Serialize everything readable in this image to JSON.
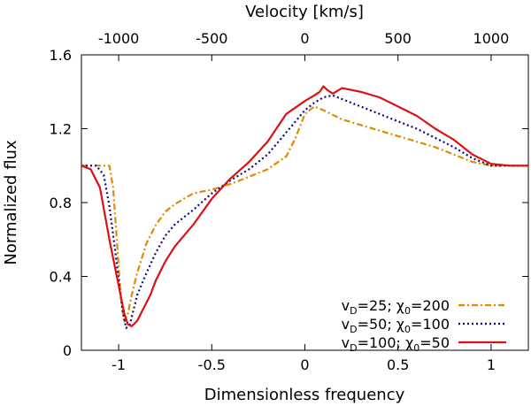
{
  "chart_data": {
    "type": "line",
    "title": "",
    "xlabel": "Dimensionless frequency",
    "ylabel": "Normalized flux",
    "x2label": "Velocity [km/s]",
    "xlim": [
      -1.2,
      1.2
    ],
    "ylim": [
      0,
      1.6
    ],
    "x2lim": [
      -1200,
      1200
    ],
    "xticks": [
      -1,
      -0.5,
      0,
      0.5,
      1
    ],
    "xtick_labels": [
      "-1",
      "-0.5",
      "0",
      "0.5",
      "1"
    ],
    "yticks": [
      0,
      0.4,
      0.8,
      1.2,
      1.6
    ],
    "ytick_labels": [
      "0",
      "0.4",
      "0.8",
      "1.2",
      "1.6"
    ],
    "x2ticks": [
      -1000,
      -500,
      0,
      500,
      1000
    ],
    "x2tick_labels": [
      "-1000",
      "-500",
      "0",
      "500",
      "1000"
    ],
    "grid": false,
    "legend_position": "bottom-right",
    "series": [
      {
        "name": "vD=25; χ0=200",
        "label_main": "v",
        "label_sub": "D",
        "label_rest": "=25; χ",
        "label_sub2": "0",
        "label_end": "=200",
        "color": "#e08a00",
        "dash": "7 3 2 3",
        "x": [
          -1.2,
          -1.1,
          -1.05,
          -1.03,
          -1.01,
          -0.99,
          -0.97,
          -0.95,
          -0.93,
          -0.9,
          -0.85,
          -0.8,
          -0.75,
          -0.7,
          -0.65,
          -0.6,
          -0.55,
          -0.5,
          -0.4,
          -0.3,
          -0.2,
          -0.1,
          -0.05,
          0.0,
          0.05,
          0.1,
          0.2,
          0.3,
          0.4,
          0.5,
          0.6,
          0.7,
          0.8,
          0.9,
          1.0,
          1.1,
          1.2
        ],
        "y": [
          1.0,
          1.0,
          1.0,
          0.88,
          0.6,
          0.3,
          0.15,
          0.2,
          0.3,
          0.42,
          0.58,
          0.68,
          0.75,
          0.79,
          0.82,
          0.85,
          0.86,
          0.87,
          0.9,
          0.94,
          0.98,
          1.05,
          1.15,
          1.28,
          1.32,
          1.3,
          1.25,
          1.22,
          1.19,
          1.16,
          1.13,
          1.1,
          1.06,
          1.02,
          1.0,
          1.0,
          1.0
        ]
      },
      {
        "name": "vD=50; χ0=100",
        "label_main": "v",
        "label_sub": "D",
        "label_rest": "=50; χ",
        "label_sub2": "0",
        "label_end": "=100",
        "color": "#0a0a80",
        "dash": "2 3",
        "x": [
          -1.2,
          -1.12,
          -1.08,
          -1.05,
          -1.02,
          -1.0,
          -0.98,
          -0.96,
          -0.94,
          -0.92,
          -0.9,
          -0.85,
          -0.8,
          -0.75,
          -0.7,
          -0.6,
          -0.5,
          -0.4,
          -0.3,
          -0.2,
          -0.1,
          0.0,
          0.05,
          0.1,
          0.15,
          0.2,
          0.3,
          0.4,
          0.5,
          0.6,
          0.7,
          0.8,
          0.9,
          1.0,
          1.1,
          1.2
        ],
        "y": [
          1.0,
          1.0,
          0.95,
          0.78,
          0.55,
          0.38,
          0.22,
          0.12,
          0.14,
          0.22,
          0.3,
          0.42,
          0.53,
          0.62,
          0.68,
          0.76,
          0.85,
          0.92,
          0.98,
          1.06,
          1.18,
          1.3,
          1.34,
          1.37,
          1.38,
          1.36,
          1.32,
          1.28,
          1.24,
          1.2,
          1.15,
          1.1,
          1.04,
          1.0,
          1.0,
          1.0
        ]
      },
      {
        "name": "vD=100; χ0=50",
        "label_main": "v",
        "label_sub": "D",
        "label_rest": "=100; χ",
        "label_sub2": "0",
        "label_end": "=50",
        "color": "#dd1111",
        "dash": "",
        "x": [
          -1.2,
          -1.15,
          -1.1,
          -1.05,
          -1.0,
          -0.97,
          -0.95,
          -0.93,
          -0.9,
          -0.87,
          -0.83,
          -0.8,
          -0.75,
          -0.7,
          -0.65,
          -0.6,
          -0.5,
          -0.4,
          -0.3,
          -0.2,
          -0.1,
          0.0,
          0.05,
          0.08,
          0.1,
          0.12,
          0.15,
          0.2,
          0.3,
          0.4,
          0.5,
          0.6,
          0.7,
          0.8,
          0.9,
          1.0,
          1.1,
          1.2
        ],
        "y": [
          1.0,
          0.98,
          0.88,
          0.6,
          0.35,
          0.2,
          0.14,
          0.13,
          0.16,
          0.22,
          0.3,
          0.38,
          0.48,
          0.56,
          0.62,
          0.68,
          0.82,
          0.93,
          1.02,
          1.13,
          1.28,
          1.35,
          1.38,
          1.4,
          1.43,
          1.41,
          1.39,
          1.42,
          1.4,
          1.37,
          1.32,
          1.27,
          1.2,
          1.14,
          1.06,
          1.01,
          1.0,
          1.0
        ]
      }
    ]
  }
}
